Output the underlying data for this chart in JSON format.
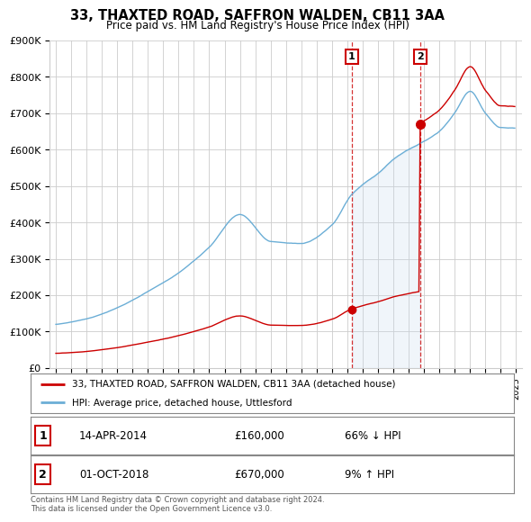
{
  "title": "33, THAXTED ROAD, SAFFRON WALDEN, CB11 3AA",
  "subtitle": "Price paid vs. HM Land Registry's House Price Index (HPI)",
  "ylim": [
    0,
    900000
  ],
  "yticks": [
    0,
    100000,
    200000,
    300000,
    400000,
    500000,
    600000,
    700000,
    800000,
    900000
  ],
  "ytick_labels": [
    "£0",
    "£100K",
    "£200K",
    "£300K",
    "£400K",
    "£500K",
    "£600K",
    "£700K",
    "£800K",
    "£900K"
  ],
  "hpi_color": "#6baed6",
  "hpi_fill_color": "#c6dbef",
  "price_color": "#cc0000",
  "transaction1_x": 2014.29,
  "transaction1_price": 160000,
  "transaction2_x": 2018.75,
  "transaction2_price": 670000,
  "background_color": "#ffffff",
  "grid_color": "#cccccc",
  "legend_line1": "33, THAXTED ROAD, SAFFRON WALDEN, CB11 3AA (detached house)",
  "legend_line2": "HPI: Average price, detached house, Uttlesford",
  "footnote": "Contains HM Land Registry data © Crown copyright and database right 2024.\nThis data is licensed under the Open Government Licence v3.0."
}
